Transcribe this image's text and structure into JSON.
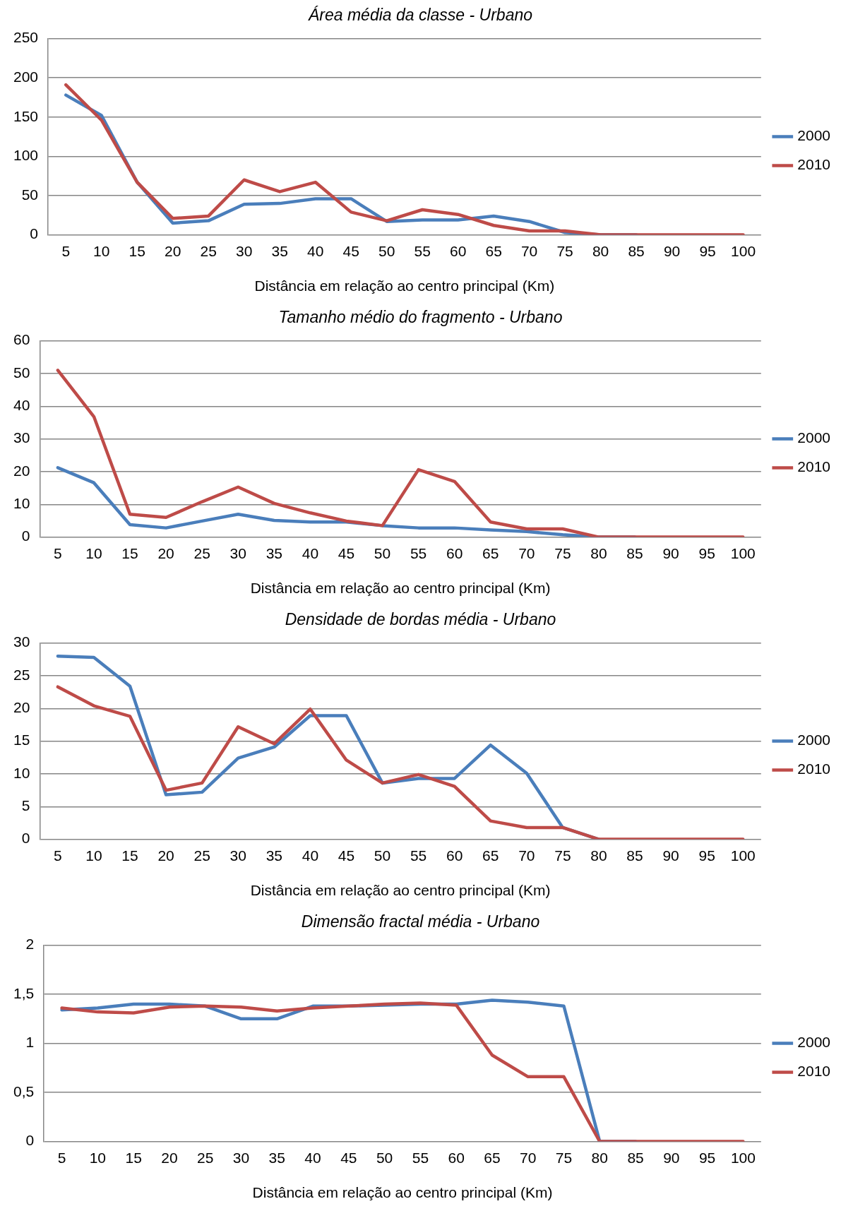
{
  "chart_data": [
    {
      "type": "line",
      "title": "Área média da classe - Urbano",
      "xlabel": "Distância em relação ao centro principal (Km)",
      "categories": [
        "5",
        "10",
        "15",
        "20",
        "25",
        "30",
        "35",
        "40",
        "45",
        "50",
        "55",
        "60",
        "65",
        "70",
        "75",
        "80",
        "85",
        "90",
        "95",
        "100"
      ],
      "ylim": [
        0,
        250
      ],
      "yticks": [
        0,
        50,
        100,
        150,
        200,
        250
      ],
      "grid": "y",
      "legend": "right",
      "marker": "none",
      "line_style": "solid",
      "series": [
        {
          "name": "2000",
          "color": "#4a7ebb",
          "values": [
            178,
            152,
            67,
            15,
            18,
            39,
            40,
            46,
            46,
            17,
            19,
            19,
            24,
            17,
            3,
            0,
            0,
            null,
            null,
            null
          ]
        },
        {
          "name": "2010",
          "color": "#be4b48",
          "values": [
            191,
            146,
            67,
            21,
            24,
            70,
            55,
            67,
            29,
            18,
            32,
            26,
            12,
            5,
            5,
            0,
            0,
            0,
            0,
            0
          ]
        }
      ]
    },
    {
      "type": "line",
      "title": "Tamanho médio do fragmento - Urbano",
      "xlabel": "Distância em relação ao centro principal (Km)",
      "categories": [
        "5",
        "10",
        "15",
        "20",
        "25",
        "30",
        "35",
        "40",
        "45",
        "50",
        "55",
        "60",
        "65",
        "70",
        "75",
        "80",
        "85",
        "90",
        "95",
        "100"
      ],
      "ylim": [
        0,
        60
      ],
      "yticks": [
        0,
        10,
        20,
        30,
        40,
        50,
        60
      ],
      "grid": "y",
      "legend": "right",
      "marker": "none",
      "line_style": "solid",
      "series": [
        {
          "name": "2000",
          "color": "#4a7ebb",
          "values": [
            21.2,
            16.6,
            3.8,
            2.8,
            4.9,
            7.0,
            5.1,
            4.6,
            4.6,
            3.5,
            2.8,
            2.8,
            2.2,
            1.7,
            0.7,
            0,
            0,
            null,
            null,
            null
          ]
        },
        {
          "name": "2010",
          "color": "#be4b48",
          "values": [
            51,
            36.8,
            7,
            6,
            10.8,
            15.3,
            10.3,
            7.4,
            4.9,
            3.5,
            20.6,
            17,
            4.6,
            2.5,
            2.5,
            0,
            0,
            0,
            0,
            0
          ]
        }
      ]
    },
    {
      "type": "line",
      "title": "Densidade de bordas média - Urbano",
      "xlabel": "Distância em relação ao centro principal (Km)",
      "categories": [
        "5",
        "10",
        "15",
        "20",
        "25",
        "30",
        "35",
        "40",
        "45",
        "50",
        "55",
        "60",
        "65",
        "70",
        "75",
        "80",
        "85",
        "90",
        "95",
        "100"
      ],
      "ylim": [
        0,
        30
      ],
      "yticks": [
        0,
        5,
        10,
        15,
        20,
        25,
        30
      ],
      "grid": "y",
      "legend": "right",
      "marker": "none",
      "line_style": "solid",
      "series": [
        {
          "name": "2000",
          "color": "#4a7ebb",
          "values": [
            28,
            27.8,
            23.4,
            6.8,
            7.2,
            12.4,
            14.1,
            18.9,
            18.9,
            8.6,
            9.3,
            9.3,
            14.4,
            10.1,
            1.8,
            0,
            null,
            null,
            null,
            null
          ]
        },
        {
          "name": "2010",
          "color": "#be4b48",
          "values": [
            23.3,
            20.4,
            18.8,
            7.5,
            8.6,
            17.2,
            14.6,
            19.9,
            12.1,
            8.6,
            9.9,
            8.1,
            2.8,
            1.8,
            1.8,
            0,
            0,
            0,
            0,
            0
          ]
        }
      ]
    },
    {
      "type": "line",
      "title": "Dimensão fractal média - Urbano",
      "xlabel": "Distância em relação ao centro principal (Km)",
      "categories": [
        "5",
        "10",
        "15",
        "20",
        "25",
        "30",
        "35",
        "40",
        "45",
        "50",
        "55",
        "60",
        "65",
        "70",
        "75",
        "80",
        "85",
        "90",
        "95",
        "100"
      ],
      "ylim": [
        0,
        2
      ],
      "yticks": [
        0,
        {
          "value": 0.5,
          "label": "0,5"
        },
        1,
        {
          "value": 1.5,
          "label": "1,5"
        },
        2
      ],
      "grid": "y",
      "legend": "right",
      "marker": "none",
      "line_style": "solid",
      "series": [
        {
          "name": "2000",
          "color": "#4a7ebb",
          "values": [
            1.34,
            1.36,
            1.4,
            1.4,
            1.38,
            1.25,
            1.25,
            1.38,
            1.38,
            1.39,
            1.4,
            1.4,
            1.44,
            1.42,
            1.38,
            0,
            0,
            null,
            null,
            null
          ]
        },
        {
          "name": "2010",
          "color": "#be4b48",
          "values": [
            1.36,
            1.32,
            1.31,
            1.37,
            1.38,
            1.37,
            1.33,
            1.36,
            1.38,
            1.4,
            1.41,
            1.39,
            0.88,
            0.66,
            0.66,
            0,
            0,
            0,
            0,
            0
          ]
        }
      ]
    }
  ]
}
